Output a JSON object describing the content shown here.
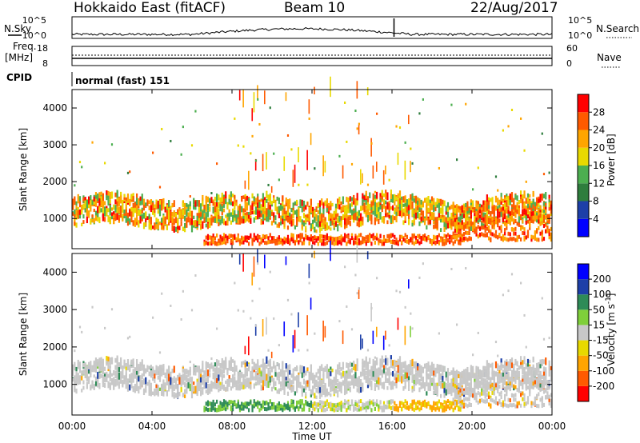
{
  "header": {
    "station": "Hokkaido East (fitACF)",
    "beam": "Beam 10",
    "date": "22/Aug/2017"
  },
  "noise_panel": {
    "left_label": "N.Sky",
    "right_label": "N.Search",
    "left_ticks": [
      "10^5",
      "10^0"
    ],
    "right_ticks": [
      "10^5",
      "10^0"
    ]
  },
  "freq_panel": {
    "left_label_1": "Freq.",
    "left_label_2": "[MHz]",
    "right_label": "Nave",
    "left_ticks": [
      "18",
      "8"
    ],
    "right_ticks": [
      "60",
      "0"
    ]
  },
  "cpid_panel": {
    "label": "CPID",
    "text": "normal (fast) 151"
  },
  "x_axis": {
    "label": "Time UT",
    "ticks": [
      "00:00",
      "04:00",
      "08:00",
      "12:00",
      "16:00",
      "20:00",
      "00:00"
    ]
  },
  "colors": {
    "power": [
      "#0000ff",
      "#1d3fa8",
      "#2e7d3d",
      "#4caf50",
      "#e8d900",
      "#ffa500",
      "#ff5a00",
      "#ff0000"
    ],
    "velocity": [
      "#ff0000",
      "#ff5a00",
      "#ffa500",
      "#e8d900",
      "#c8c8c8",
      "#7fcf3a",
      "#2e8b57",
      "#1d3fa8",
      "#0000ff"
    ]
  },
  "chart_data": [
    {
      "type": "heatmap",
      "title": "",
      "xlabel": "",
      "ylabel": "Slant Range [km]",
      "xlim_hours": [
        0,
        24
      ],
      "ylim_km": [
        180,
        4500
      ],
      "y_ticks": [
        "4000",
        "3000",
        "2000",
        "1000"
      ],
      "y_tick_values": [
        4000,
        3000,
        2000,
        1000
      ],
      "colorbar": {
        "label": "Power [dB]",
        "ticks": [
          "28",
          "24",
          "20",
          "16",
          "12",
          "8",
          "4"
        ],
        "range": [
          0,
          30
        ]
      },
      "dominant_echo_bands": [
        {
          "t_start_h": 0.0,
          "t_end_h": 24.0,
          "range_km_min": 700,
          "range_km_max": 1500,
          "power_db": 20
        },
        {
          "t_start_h": 6.5,
          "t_end_h": 19.0,
          "range_km_min": 250,
          "range_km_max": 500,
          "power_db": 28
        },
        {
          "t_start_h": 19.0,
          "t_end_h": 24.0,
          "range_km_min": 400,
          "range_km_max": 1200,
          "power_db": 26
        }
      ]
    },
    {
      "type": "heatmap",
      "title": "",
      "xlabel": "Time UT",
      "ylabel": "Slant Range [km]",
      "xlim_hours": [
        0,
        24
      ],
      "ylim_km": [
        180,
        4500
      ],
      "y_ticks": [
        "4000",
        "3000",
        "2000",
        "1000"
      ],
      "y_tick_values": [
        4000,
        3000,
        2000,
        1000
      ],
      "colorbar": {
        "label": "Velocity [m s^-1]",
        "ticks": [
          "200",
          "100",
          "50",
          "15",
          "-15",
          "-50",
          "-100",
          "-200"
        ],
        "range": [
          -250,
          250
        ]
      },
      "dominant_echo_bands": [
        {
          "t_start_h": 0.0,
          "t_end_h": 24.0,
          "range_km_min": 700,
          "range_km_max": 1500,
          "velocity": 0
        },
        {
          "t_start_h": 6.5,
          "t_end_h": 19.0,
          "range_km_min": 200,
          "range_km_max": 450,
          "velocity": 40
        },
        {
          "t_start_h": 16.0,
          "t_end_h": 24.0,
          "range_km_min": 200,
          "range_km_max": 600,
          "velocity": -60
        }
      ]
    }
  ]
}
